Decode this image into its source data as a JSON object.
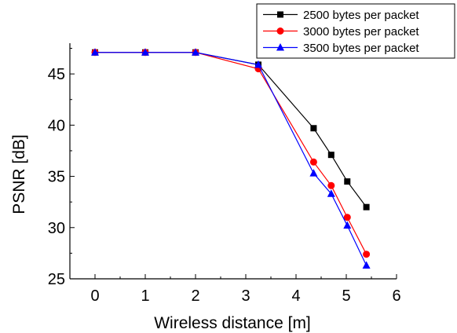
{
  "chart_data": {
    "type": "line",
    "title": "",
    "xlabel": "Wireless distance [m]",
    "ylabel": "PSNR [dB]",
    "xlim": [
      -0.5,
      6
    ],
    "ylim": [
      25,
      48
    ],
    "xticks": [
      0,
      1,
      2,
      3,
      4,
      5,
      6
    ],
    "yticks": [
      25,
      30,
      35,
      40,
      45
    ],
    "grid": false,
    "legend_position": "top-right",
    "series": [
      {
        "name": "2500 bytes per packet",
        "color": "#000000",
        "marker": "square",
        "x": [
          0,
          1,
          2,
          3.25,
          4.35,
          4.7,
          5.02,
          5.4
        ],
        "y": [
          47.1,
          47.1,
          47.1,
          45.9,
          39.7,
          37.1,
          34.5,
          32.0
        ]
      },
      {
        "name": "3000 bytes per packet",
        "color": "#ff0000",
        "marker": "circle",
        "x": [
          0,
          1,
          2,
          3.25,
          4.35,
          4.7,
          5.02,
          5.4
        ],
        "y": [
          47.1,
          47.1,
          47.1,
          45.5,
          36.4,
          34.1,
          31.0,
          27.4
        ]
      },
      {
        "name": "3500 bytes per packet",
        "color": "#0000ff",
        "marker": "triangle",
        "x": [
          0,
          1,
          2,
          3.25,
          4.35,
          4.7,
          5.02,
          5.4
        ],
        "y": [
          47.1,
          47.1,
          47.1,
          45.9,
          35.3,
          33.3,
          30.2,
          26.3
        ]
      }
    ]
  }
}
